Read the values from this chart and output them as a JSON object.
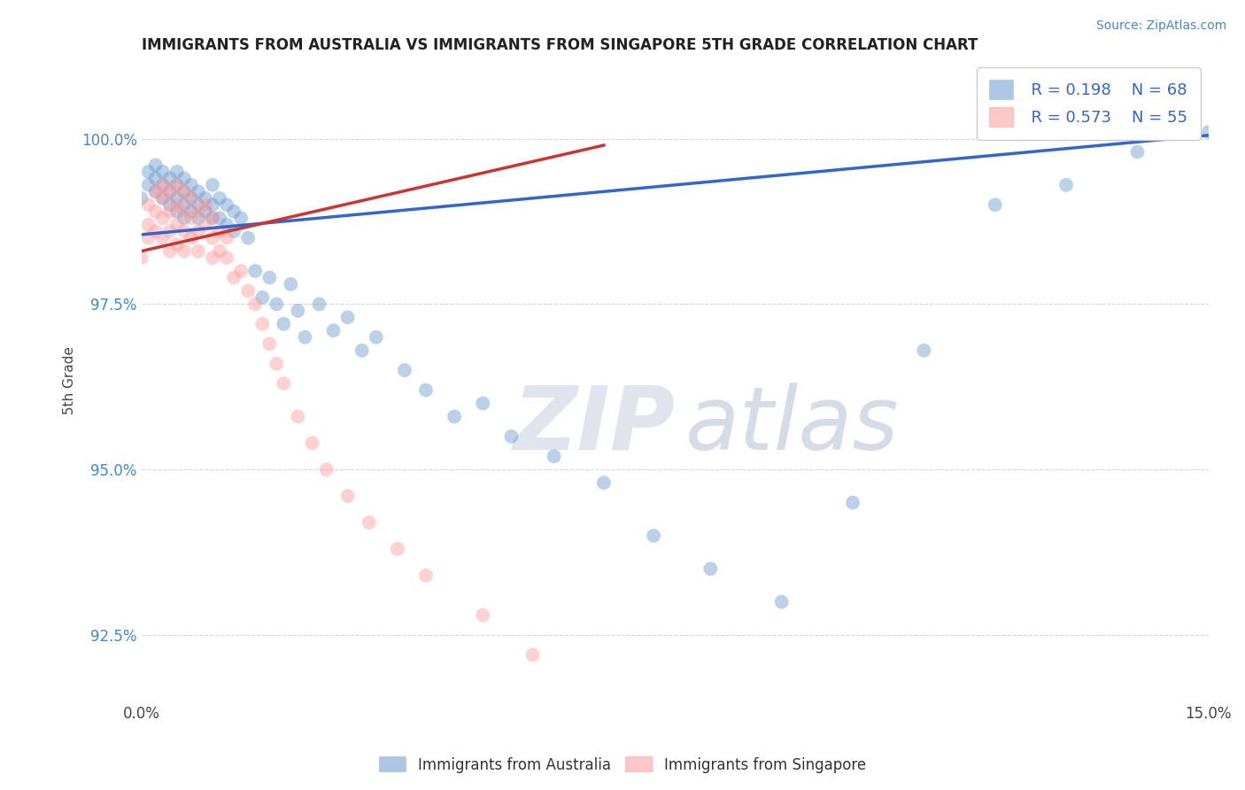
{
  "title": "IMMIGRANTS FROM AUSTRALIA VS IMMIGRANTS FROM SINGAPORE 5TH GRADE CORRELATION CHART",
  "source": "Source: ZipAtlas.com",
  "ylabel": "5th Grade",
  "xlim": [
    0.0,
    0.15
  ],
  "ylim": [
    91.5,
    101.2
  ],
  "yticks": [
    92.5,
    95.0,
    97.5,
    100.0
  ],
  "ytick_labels": [
    "92.5%",
    "95.0%",
    "97.5%",
    "100.0%"
  ],
  "xticks": [
    0.0,
    0.15
  ],
  "xtick_labels": [
    "0.0%",
    "15.0%"
  ],
  "legend_R1": "R = 0.198",
  "legend_N1": "N = 68",
  "legend_R2": "R = 0.573",
  "legend_N2": "N = 55",
  "color_australia": "#6699CC",
  "color_singapore": "#FF9999",
  "trendline_australia_color": "#3366CC",
  "trendline_singapore_color": "#CC3333",
  "aus_trendline_x": [
    0.0,
    0.15
  ],
  "aus_trendline_y": [
    98.55,
    100.05
  ],
  "sin_trendline_x": [
    0.0,
    0.065
  ],
  "sin_trendline_y": [
    98.3,
    99.9
  ],
  "australia_x": [
    0.0,
    0.001,
    0.001,
    0.002,
    0.002,
    0.002,
    0.003,
    0.003,
    0.003,
    0.004,
    0.004,
    0.004,
    0.005,
    0.005,
    0.005,
    0.005,
    0.006,
    0.006,
    0.006,
    0.006,
    0.007,
    0.007,
    0.007,
    0.008,
    0.008,
    0.008,
    0.009,
    0.009,
    0.01,
    0.01,
    0.01,
    0.011,
    0.011,
    0.012,
    0.012,
    0.013,
    0.013,
    0.014,
    0.015,
    0.016,
    0.017,
    0.018,
    0.019,
    0.02,
    0.021,
    0.022,
    0.023,
    0.025,
    0.027,
    0.029,
    0.031,
    0.033,
    0.037,
    0.04,
    0.044,
    0.048,
    0.052,
    0.058,
    0.065,
    0.072,
    0.08,
    0.09,
    0.1,
    0.11,
    0.12,
    0.13,
    0.14,
    0.15
  ],
  "australia_y": [
    99.1,
    99.5,
    99.3,
    99.6,
    99.4,
    99.2,
    99.5,
    99.3,
    99.1,
    99.4,
    99.2,
    99.0,
    99.5,
    99.3,
    99.1,
    98.9,
    99.4,
    99.2,
    99.0,
    98.8,
    99.3,
    99.1,
    98.9,
    99.2,
    99.0,
    98.8,
    99.1,
    98.9,
    99.3,
    99.0,
    98.8,
    99.1,
    98.8,
    99.0,
    98.7,
    98.9,
    98.6,
    98.8,
    98.5,
    98.0,
    97.6,
    97.9,
    97.5,
    97.2,
    97.8,
    97.4,
    97.0,
    97.5,
    97.1,
    97.3,
    96.8,
    97.0,
    96.5,
    96.2,
    95.8,
    96.0,
    95.5,
    95.2,
    94.8,
    94.0,
    93.5,
    93.0,
    94.5,
    96.8,
    99.0,
    99.3,
    99.8,
    100.1
  ],
  "singapore_x": [
    0.0,
    0.001,
    0.001,
    0.001,
    0.002,
    0.002,
    0.002,
    0.003,
    0.003,
    0.003,
    0.003,
    0.004,
    0.004,
    0.004,
    0.004,
    0.005,
    0.005,
    0.005,
    0.005,
    0.006,
    0.006,
    0.006,
    0.006,
    0.007,
    0.007,
    0.007,
    0.008,
    0.008,
    0.008,
    0.009,
    0.009,
    0.01,
    0.01,
    0.01,
    0.011,
    0.011,
    0.012,
    0.012,
    0.013,
    0.014,
    0.015,
    0.016,
    0.017,
    0.018,
    0.019,
    0.02,
    0.022,
    0.024,
    0.026,
    0.029,
    0.032,
    0.036,
    0.04,
    0.048,
    0.055
  ],
  "singapore_y": [
    98.2,
    99.0,
    98.7,
    98.5,
    99.2,
    98.9,
    98.6,
    99.3,
    99.1,
    98.8,
    98.5,
    99.2,
    98.9,
    98.6,
    98.3,
    99.3,
    99.0,
    98.7,
    98.4,
    99.2,
    98.9,
    98.6,
    98.3,
    99.1,
    98.8,
    98.5,
    98.9,
    98.6,
    98.3,
    99.0,
    98.7,
    98.8,
    98.5,
    98.2,
    98.6,
    98.3,
    98.5,
    98.2,
    97.9,
    98.0,
    97.7,
    97.5,
    97.2,
    96.9,
    96.6,
    96.3,
    95.8,
    95.4,
    95.0,
    94.6,
    94.2,
    93.8,
    93.4,
    92.8,
    92.2
  ]
}
